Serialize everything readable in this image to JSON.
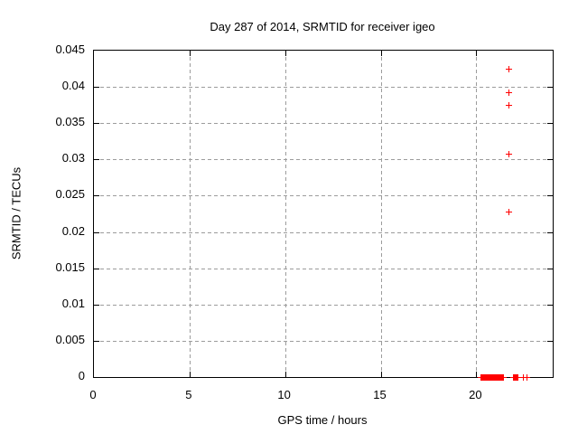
{
  "chart_data": {
    "type": "scatter",
    "title": "Day 287 of 2014, SRMTID for receiver igeo",
    "xlabel": "GPS time / hours",
    "ylabel": "SRMTID / TECUs",
    "xlim": [
      0,
      24
    ],
    "ylim": [
      0,
      0.045
    ],
    "xticks": [
      0,
      5,
      10,
      15,
      20
    ],
    "xtick_labels": [
      "0",
      "5",
      "10",
      "15",
      "20"
    ],
    "yticks": [
      0,
      0.005,
      0.01,
      0.015,
      0.02,
      0.025,
      0.03,
      0.035,
      0.04,
      0.045
    ],
    "ytick_labels": [
      "0",
      "0.005",
      "0.01",
      "0.015",
      "0.02",
      "0.025",
      "0.03",
      "0.035",
      "0.04",
      "0.045"
    ],
    "grid": true,
    "legend": "none",
    "marker": "plus",
    "series": [
      {
        "name": "SRMTID",
        "spike_points": [
          [
            21.7,
            0.0424
          ],
          [
            21.7,
            0.0392
          ],
          [
            21.71,
            0.0374
          ],
          [
            21.71,
            0.0307
          ],
          [
            21.73,
            0.0228
          ]
        ],
        "zero_value_clusters": [
          {
            "x_start": 20.26,
            "x_end": 21.44,
            "y": 0,
            "step": 0.02
          },
          {
            "x_start": 21.93,
            "x_end": 22.19,
            "y": 0,
            "step": 0.02
          },
          {
            "x_start": 22.45,
            "x_end": 22.45,
            "y": 0,
            "step": 0.02
          },
          {
            "x_start": 22.63,
            "x_end": 22.63,
            "y": 0,
            "step": 0.02
          }
        ]
      }
    ],
    "colors": {
      "background": "#ffffff",
      "border": "#000000",
      "grid": "#9c9c9c",
      "text": "#000000",
      "marker": "#ff0000"
    }
  }
}
